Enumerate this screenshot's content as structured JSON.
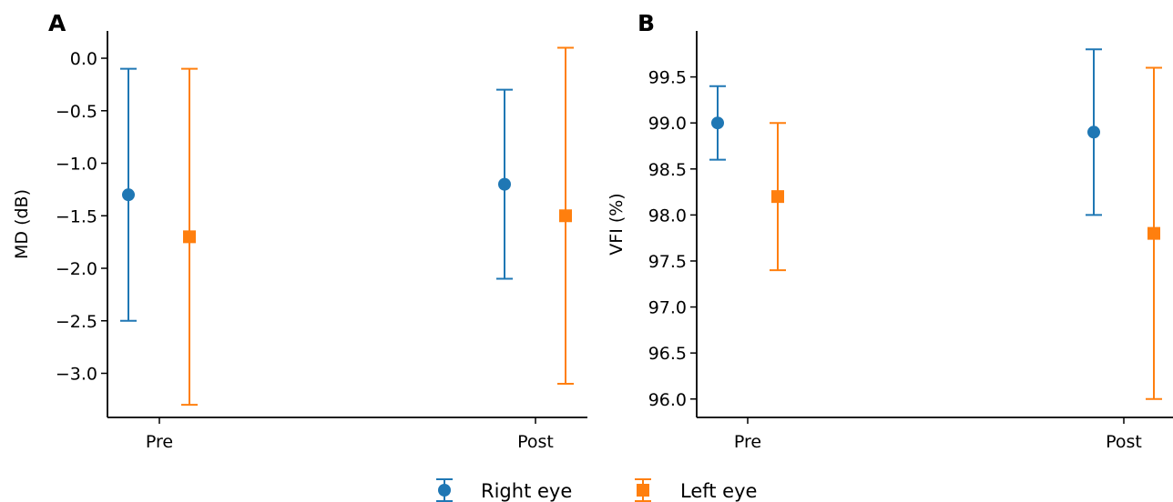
{
  "chart_data": [
    {
      "type": "scatter",
      "panel_label": "A",
      "categories": [
        "Pre",
        "Post"
      ],
      "ylabel": "MD (dB)",
      "xlabel": "",
      "ylim": [
        -3.42,
        0.26
      ],
      "yticks": [
        "0.0",
        "−0.5",
        "−1.0",
        "−1.5",
        "−2.0",
        "−2.5",
        "−3.0"
      ],
      "ytick_values": [
        0.0,
        -0.5,
        -1.0,
        -1.5,
        -2.0,
        -2.5,
        -3.0
      ],
      "series": [
        {
          "name": "Right eye",
          "color": "#1f77b4",
          "marker": "circle",
          "values": [
            -1.3,
            -1.2
          ],
          "lower": [
            -2.5,
            -2.1
          ],
          "upper": [
            -0.1,
            -0.3
          ]
        },
        {
          "name": "Left eye",
          "color": "#ff7f0e",
          "marker": "square",
          "values": [
            -1.7,
            -1.5
          ],
          "lower": [
            -3.3,
            -3.1
          ],
          "upper": [
            -0.1,
            0.1
          ]
        }
      ]
    },
    {
      "type": "scatter",
      "panel_label": "B",
      "categories": [
        "Pre",
        "Post"
      ],
      "ylabel": "VFI (%)",
      "xlabel": "",
      "ylim": [
        95.8,
        100.0
      ],
      "yticks": [
        "99.5",
        "99.0",
        "98.5",
        "98.0",
        "97.5",
        "97.0",
        "96.5",
        "96.0"
      ],
      "ytick_values": [
        99.5,
        99.0,
        98.5,
        98.0,
        97.5,
        97.0,
        96.5,
        96.0
      ],
      "series": [
        {
          "name": "Right eye",
          "color": "#1f77b4",
          "marker": "circle",
          "values": [
            99.0,
            98.9
          ],
          "lower": [
            98.6,
            98.0
          ],
          "upper": [
            99.4,
            99.8
          ]
        },
        {
          "name": "Left eye",
          "color": "#ff7f0e",
          "marker": "square",
          "values": [
            98.2,
            97.8
          ],
          "lower": [
            97.4,
            96.0
          ],
          "upper": [
            99.0,
            99.6
          ]
        }
      ]
    }
  ],
  "legend": {
    "placement": "bottom-center",
    "items": [
      {
        "label": "Right eye",
        "color": "#1f77b4",
        "marker": "circle"
      },
      {
        "label": "Left eye",
        "color": "#ff7f0e",
        "marker": "square"
      }
    ]
  }
}
